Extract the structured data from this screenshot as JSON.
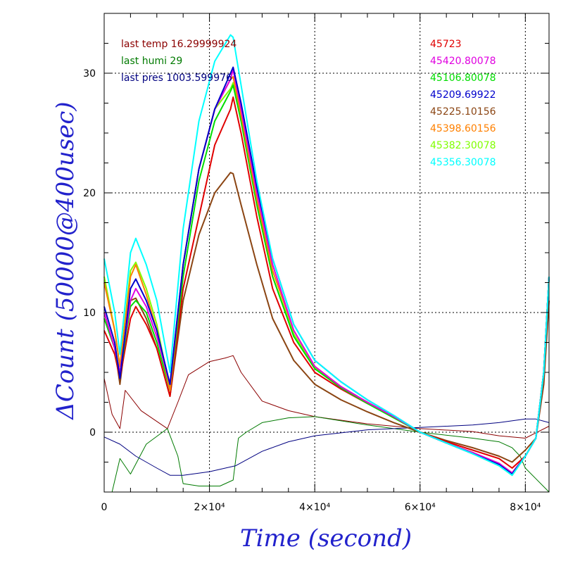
{
  "chart_data": {
    "type": "line",
    "title": "",
    "xlabel": "Time (second)",
    "ylabel": "ΔCount (50000@400usec)",
    "xlim": [
      0,
      84500
    ],
    "ylim": [
      -5,
      35
    ],
    "grid": true,
    "x_ticks": [
      {
        "value": 0,
        "label": "0"
      },
      {
        "value": 20000,
        "label": "2×10⁴"
      },
      {
        "value": 40000,
        "label": "4×10⁴"
      },
      {
        "value": 60000,
        "label": "6×10⁴"
      },
      {
        "value": 80000,
        "label": "8×10⁴"
      }
    ],
    "y_ticks": [
      {
        "value": 0,
        "label": "0"
      },
      {
        "value": 10,
        "label": "10"
      },
      {
        "value": 20,
        "label": "20"
      },
      {
        "value": 30,
        "label": "30"
      }
    ],
    "legend_left": [
      {
        "text": "last temp 16.29999924",
        "color": "#8b0000"
      },
      {
        "text": "last humi 29",
        "color": "#007a00"
      },
      {
        "text": "last pres 1003.599976",
        "color": "#000080"
      }
    ],
    "legend_right": [
      {
        "text": "45723",
        "color": "#e00000"
      },
      {
        "text": "45420.80078",
        "color": "#e000e0"
      },
      {
        "text": "45106.80078",
        "color": "#00dd00"
      },
      {
        "text": "45209.69922",
        "color": "#0000cc"
      },
      {
        "text": "45225.10156",
        "color": "#8b4513"
      },
      {
        "text": "45398.60156",
        "color": "#ff8000"
      },
      {
        "text": "45382.30078",
        "color": "#80ff00"
      },
      {
        "text": "45356.30078",
        "color": "#00ffff"
      }
    ],
    "series": [
      {
        "color": "#e00000",
        "x": [
          0,
          2000,
          3000,
          5000,
          6000,
          8000,
          10000,
          12500,
          15000,
          18000,
          21000,
          24000,
          24500,
          26000,
          29000,
          32000,
          36000,
          40000,
          45000,
          50000,
          55000,
          60000,
          65000,
          70000,
          75000,
          77500,
          80000,
          82000,
          83500,
          84500
        ],
        "y": [
          8.5,
          6.5,
          4.5,
          9.5,
          10.5,
          9,
          7,
          3,
          12,
          18,
          24,
          27,
          28,
          25,
          18,
          12,
          7.5,
          5,
          3.6,
          2.4,
          1.3,
          0,
          -0.8,
          -1.5,
          -2.2,
          -3,
          -2,
          -0.5,
          5,
          13
        ]
      },
      {
        "color": "#e000e0",
        "x": [
          0,
          2000,
          3000,
          5000,
          6000,
          8000,
          10000,
          12500,
          15000,
          18000,
          21000,
          24000,
          24500,
          26000,
          29000,
          32000,
          36000,
          40000,
          45000,
          50000,
          55000,
          60000,
          65000,
          70000,
          75000,
          77500,
          80000,
          82000,
          83500,
          84500
        ],
        "y": [
          10,
          7,
          5,
          11,
          12,
          10.5,
          8,
          4,
          14,
          22,
          27,
          29.5,
          30.3,
          27,
          20,
          14,
          8.5,
          5.5,
          3.8,
          2.5,
          1.3,
          0,
          -0.9,
          -1.7,
          -2.6,
          -3.4,
          -2,
          -0.5,
          5,
          13
        ]
      },
      {
        "color": "#00dd00",
        "x": [
          0,
          2000,
          3000,
          5000,
          6000,
          8000,
          10000,
          12500,
          15000,
          18000,
          21000,
          24000,
          24500,
          26000,
          29000,
          32000,
          36000,
          40000,
          45000,
          50000,
          55000,
          60000,
          65000,
          70000,
          75000,
          77500,
          80000,
          82000,
          83500,
          84500
        ],
        "y": [
          9.5,
          7,
          4.8,
          10.5,
          11,
          10,
          7.5,
          3.5,
          13,
          21,
          26,
          28.5,
          29,
          26,
          19,
          13,
          8,
          5.3,
          3.7,
          2.4,
          1.2,
          0,
          -0.9,
          -1.7,
          -2.7,
          -3.5,
          -2,
          -0.5,
          5,
          13
        ]
      },
      {
        "color": "#0000cc",
        "x": [
          0,
          2000,
          3000,
          5000,
          6000,
          8000,
          10000,
          12500,
          15000,
          18000,
          21000,
          24000,
          24500,
          26000,
          29000,
          32000,
          36000,
          40000,
          45000,
          50000,
          55000,
          60000,
          65000,
          70000,
          75000,
          77500,
          80000,
          82000,
          83500,
          84500
        ],
        "y": [
          10.5,
          7.5,
          4.5,
          12,
          12.8,
          11,
          8.5,
          4,
          14,
          22,
          27,
          30,
          30.5,
          27.5,
          20.5,
          14.5,
          9,
          6,
          4.2,
          2.7,
          1.4,
          0,
          -0.9,
          -1.8,
          -2.7,
          -3.5,
          -2,
          -0.5,
          5,
          13
        ]
      },
      {
        "color": "#8b4513",
        "x": [
          0,
          2000,
          3000,
          5000,
          6000,
          8000,
          10000,
          12500,
          15000,
          18000,
          21000,
          24000,
          24500,
          26000,
          29000,
          32000,
          36000,
          40000,
          45000,
          50000,
          55000,
          60000,
          65000,
          70000,
          75000,
          77500,
          80000,
          82000,
          83500,
          84500
        ],
        "y": [
          10,
          7,
          4,
          11,
          11.2,
          9.5,
          7,
          3,
          11,
          16.5,
          20,
          21.7,
          21.6,
          19,
          14,
          9.5,
          6,
          4,
          2.7,
          1.7,
          0.8,
          0,
          -0.7,
          -1.3,
          -2,
          -2.5,
          -1.5,
          -0.5,
          4,
          11
        ]
      },
      {
        "color": "#ff8000",
        "x": [
          0,
          2000,
          3000,
          5000,
          6000,
          8000,
          10000,
          12500,
          15000,
          18000,
          21000,
          24000,
          24500,
          26000,
          29000,
          32000,
          36000,
          40000,
          45000,
          50000,
          55000,
          60000,
          65000,
          70000,
          75000,
          77500,
          80000,
          82000,
          83500,
          84500
        ],
        "y": [
          12.5,
          8.5,
          5.5,
          13,
          14,
          11.5,
          8.5,
          3.5,
          14,
          22,
          27,
          29.5,
          29.7,
          26.5,
          19.5,
          13.5,
          8.5,
          5.5,
          3.8,
          2.5,
          1.3,
          0,
          -0.9,
          -1.7,
          -2.6,
          -3.4,
          -2,
          -0.5,
          5,
          13
        ]
      },
      {
        "color": "#80ff00",
        "x": [
          0,
          2000,
          3000,
          5000,
          6000,
          8000,
          10000,
          12500,
          15000,
          18000,
          21000,
          24000,
          24500,
          26000,
          29000,
          32000,
          36000,
          40000,
          45000,
          50000,
          55000,
          60000,
          65000,
          70000,
          75000,
          77500,
          80000,
          82000,
          83500,
          84500
        ],
        "y": [
          13,
          8.5,
          5.5,
          13.5,
          14.2,
          12,
          9,
          3.5,
          14,
          22,
          27,
          28.7,
          29.2,
          26,
          19,
          13,
          8.2,
          5.4,
          3.8,
          2.5,
          1.3,
          0,
          -0.9,
          -1.8,
          -2.8,
          -3.6,
          -2,
          -0.5,
          5,
          13
        ]
      },
      {
        "color": "#00ffff",
        "x": [
          0,
          2000,
          3000,
          5000,
          6000,
          8000,
          10000,
          12500,
          15000,
          18000,
          21000,
          24000,
          24500,
          26000,
          29000,
          32000,
          36000,
          40000,
          45000,
          50000,
          55000,
          60000,
          65000,
          70000,
          75000,
          77500,
          80000,
          82000,
          83500,
          84500
        ],
        "y": [
          14.5,
          10,
          6.5,
          15,
          16.2,
          14,
          11,
          5,
          17,
          26,
          31,
          33.2,
          33,
          29,
          21,
          14.5,
          9,
          6,
          4.2,
          2.7,
          1.4,
          0,
          -0.9,
          -1.8,
          -2.8,
          -3.6,
          -2,
          -0.5,
          5,
          13
        ]
      },
      {
        "color": "#8b0000",
        "x": [
          0,
          1500,
          3000,
          4000,
          7000,
          12000,
          14000,
          16000,
          20000,
          23000,
          24500,
          26000,
          30000,
          35000,
          40000,
          50000,
          60000,
          70000,
          75000,
          80000,
          84500
        ],
        "y": [
          4.5,
          1.5,
          0.3,
          3.5,
          1.8,
          0.3,
          2.5,
          4.8,
          5.9,
          6.2,
          6.4,
          5,
          2.6,
          1.8,
          1.3,
          0.7,
          0.3,
          0.05,
          -0.3,
          -0.5,
          0.5
        ]
      },
      {
        "color": "#007a00",
        "x": [
          0,
          1500,
          3000,
          5000,
          8000,
          12000,
          14000,
          15000,
          18000,
          22000,
          24500,
          25500,
          27000,
          30000,
          35000,
          40000,
          50000,
          60000,
          70000,
          75000,
          77500,
          79000,
          80000,
          84500
        ],
        "y": [
          -5,
          -5,
          -2.2,
          -3.5,
          -1,
          0.3,
          -2,
          -4.3,
          -4.5,
          -4.5,
          -4,
          -0.5,
          0,
          0.8,
          1.2,
          1.3,
          0.6,
          0,
          -0.5,
          -0.8,
          -1.3,
          -2,
          -3,
          -5
        ]
      },
      {
        "color": "#000080",
        "x": [
          0,
          3000,
          6000,
          10000,
          12500,
          15000,
          20000,
          25000,
          30000,
          35000,
          40000,
          50000,
          60000,
          70000,
          75000,
          80000,
          82000,
          84500
        ],
        "y": [
          -0.4,
          -1,
          -2,
          -3,
          -3.6,
          -3.6,
          -3.3,
          -2.8,
          -1.6,
          -0.8,
          -0.3,
          0.2,
          0.4,
          0.6,
          0.8,
          1.1,
          1.1,
          0.8
        ]
      }
    ]
  }
}
